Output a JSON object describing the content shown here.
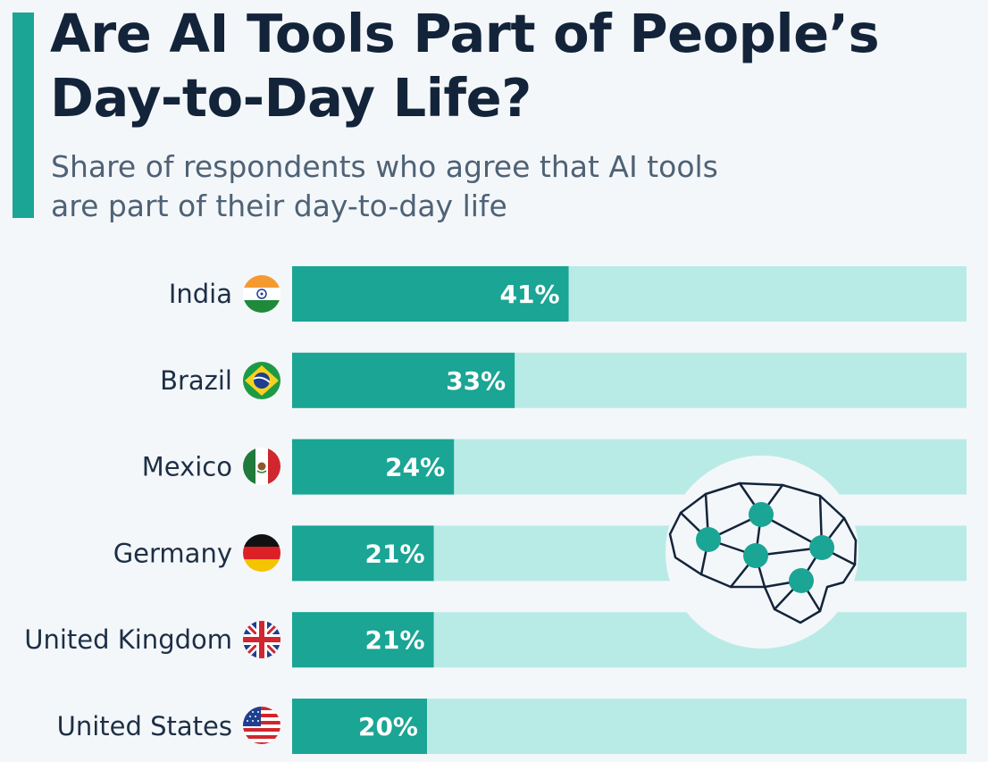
{
  "title": "Are AI Tools Part of People’s Day-to-Day Life?",
  "subtitle": "Share of respondents who agree that AI tools are part of their day-to-day life",
  "chart_data": {
    "type": "bar",
    "orientation": "horizontal",
    "categories": [
      "India",
      "Brazil",
      "Mexico",
      "Germany",
      "United Kingdom",
      "United States"
    ],
    "values": [
      41,
      33,
      24,
      21,
      21,
      20
    ],
    "value_labels": [
      "41%",
      "33%",
      "24%",
      "21%",
      "21%",
      "20%"
    ],
    "xlim": [
      0,
      100
    ],
    "grid": false,
    "legend": "none"
  },
  "colors": {
    "accent": "#1aa595",
    "bar": "#1aa595",
    "track": "#b9ebe6",
    "title": "#13243a",
    "subtitle": "#4f6276",
    "brain_outline": "#13243a"
  },
  "icons": [
    "flag-india-icon",
    "flag-brazil-icon",
    "flag-mexico-icon",
    "flag-germany-icon",
    "flag-uk-icon",
    "flag-us-icon",
    "brain-network-icon"
  ]
}
